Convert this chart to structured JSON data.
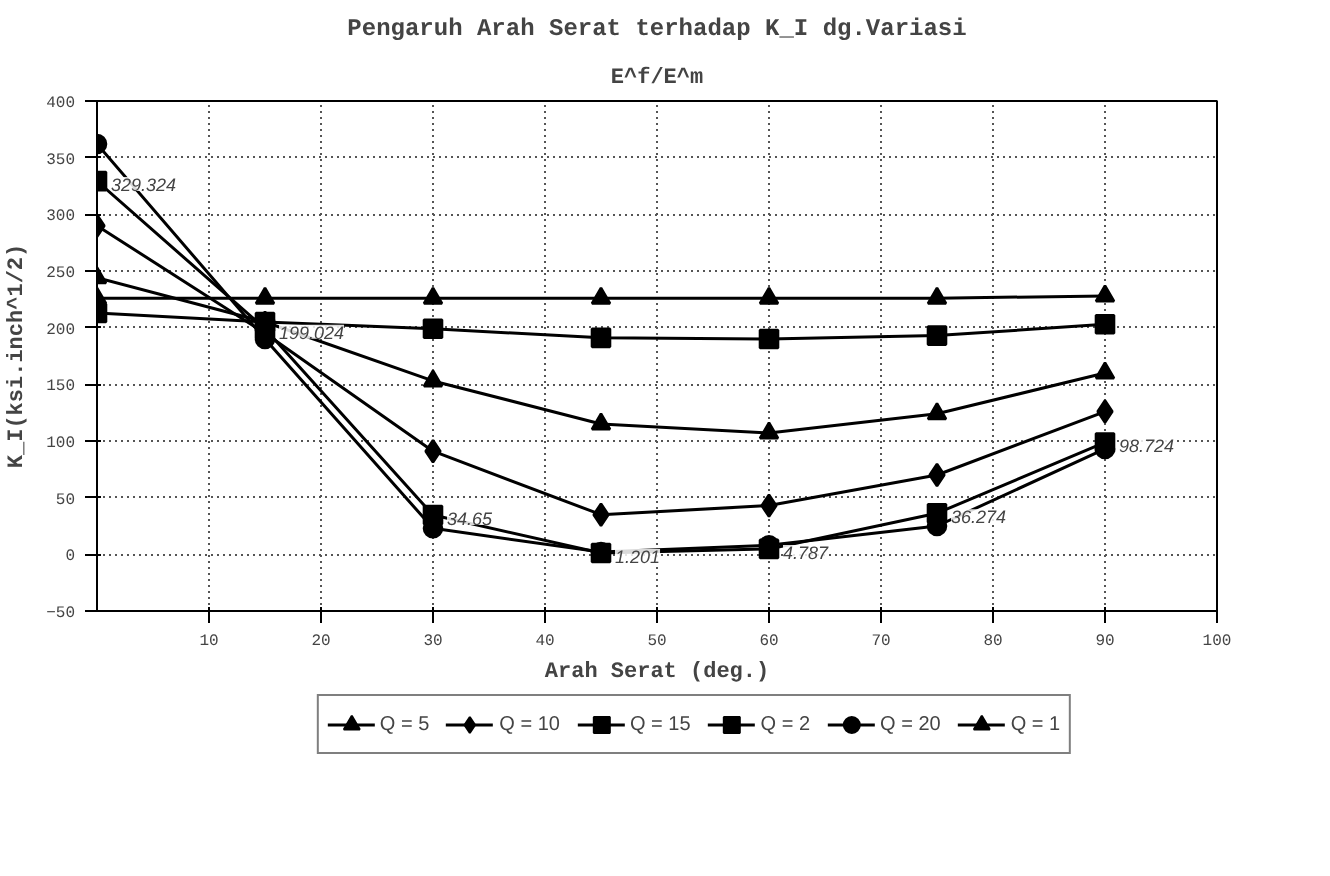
{
  "chart_data": {
    "type": "line",
    "title": "Pengaruh Arah Serat terhadap K_I dg.Variasi",
    "subtitle": "E^f/E^m",
    "xlabel": "Arah Serat (deg.)",
    "ylabel": "K_I(ksi.inch^1/2)",
    "x": [
      0,
      15,
      30,
      45,
      60,
      75,
      90
    ],
    "series": [
      {
        "name": "Q = 5",
        "color": "#000000",
        "marker": "triangle",
        "values": [
          244,
          205,
          153,
          115,
          107,
          124,
          160
        ]
      },
      {
        "name": "Q = 10",
        "color": "#000000",
        "marker": "diamond",
        "values": [
          290,
          195,
          91,
          35,
          43,
          70,
          126
        ]
      },
      {
        "name": "Q = 15",
        "color": "#000000",
        "marker": "square",
        "values": [
          329.324,
          199.024,
          34.65,
          1.201,
          4.787,
          36.274,
          98.724
        ],
        "value_labels": [
          "329.324",
          "199.024",
          "34.65",
          "1.201",
          "4.787",
          "36.274",
          "98.724"
        ]
      },
      {
        "name": "Q = 2",
        "color": "#000000",
        "marker": "square",
        "values": [
          213,
          205,
          199,
          191,
          190,
          193,
          203
        ]
      },
      {
        "name": "Q = 20",
        "color": "#000000",
        "marker": "circle",
        "values": [
          362,
          190,
          23,
          2,
          8,
          25,
          93
        ]
      },
      {
        "name": "Q = 1",
        "color": "#000000",
        "marker": "triangle",
        "values": [
          226,
          226,
          226,
          226,
          226,
          226,
          228
        ]
      }
    ],
    "xlim": [
      0,
      100
    ],
    "xticks": [
      10,
      20,
      30,
      40,
      50,
      60,
      70,
      80,
      90,
      100
    ],
    "ylim": [
      -50,
      400
    ],
    "yticks": [
      -50,
      0,
      50,
      100,
      150,
      200,
      250,
      300,
      350,
      400
    ],
    "grid": true,
    "legend": "bottom",
    "line_style": "solid"
  }
}
